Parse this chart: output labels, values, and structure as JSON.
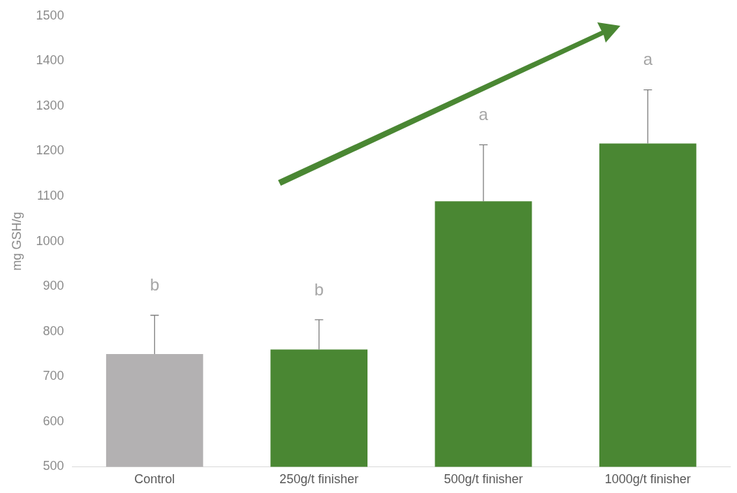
{
  "chart_data": {
    "type": "bar",
    "ylabel": "mg GSH/g",
    "categories": [
      "Control",
      "250g/t finisher",
      "500g/t finisher",
      "1000g/t finisher"
    ],
    "values": [
      750,
      760,
      1089,
      1217
    ],
    "colors": [
      "#b3b1b2",
      "#4a8733",
      "#4a8733",
      "#4a8733"
    ],
    "errors": [
      [
        750,
        836
      ],
      [
        760,
        826
      ],
      [
        1089,
        1214
      ],
      [
        1217,
        1336
      ]
    ],
    "ylim": [
      500,
      1500
    ],
    "yticks": [
      500,
      600,
      700,
      800,
      900,
      1000,
      1100,
      1200,
      1300,
      1400,
      1500
    ],
    "annotations": [
      "b",
      "b",
      "a",
      "a"
    ]
  }
}
